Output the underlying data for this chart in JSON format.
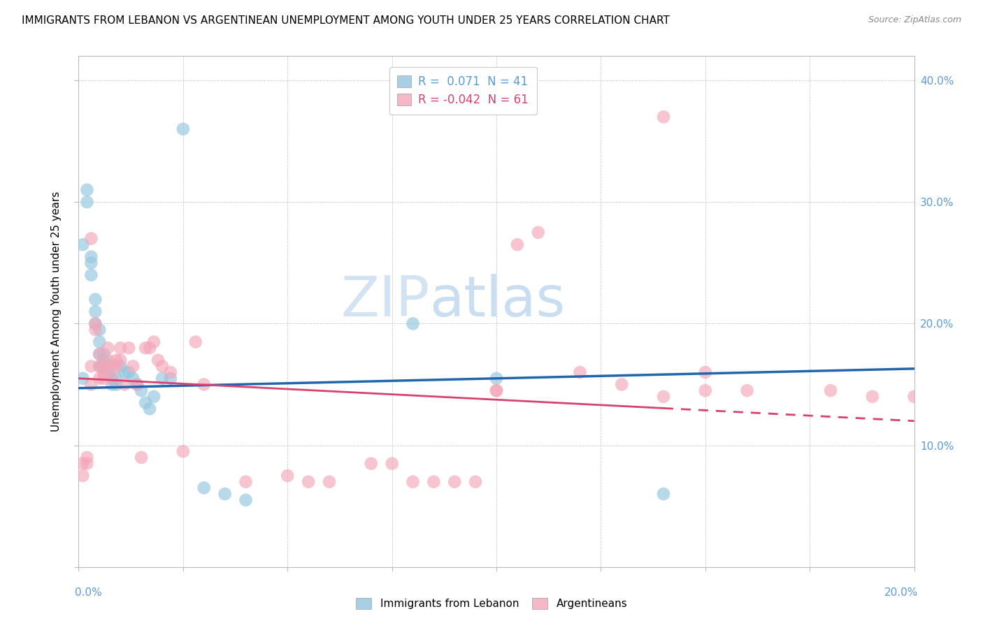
{
  "title": "IMMIGRANTS FROM LEBANON VS ARGENTINEAN UNEMPLOYMENT AMONG YOUTH UNDER 25 YEARS CORRELATION CHART",
  "source": "Source: ZipAtlas.com",
  "ylabel": "Unemployment Among Youth under 25 years",
  "xlim": [
    0.0,
    0.2
  ],
  "ylim": [
    0.0,
    0.42
  ],
  "legend1_label": "Immigrants from Lebanon",
  "legend2_label": "Argentineans",
  "R1": 0.071,
  "N1": 41,
  "R2": -0.042,
  "N2": 61,
  "color_blue": "#92c5de",
  "color_pink": "#f4a6b8",
  "color_blue_line": "#2166ac",
  "color_pink_line": "#d6436e",
  "watermark_zip": "ZIP",
  "watermark_atlas": "atlas",
  "blue_points_x": [
    0.001,
    0.002,
    0.002,
    0.003,
    0.003,
    0.004,
    0.004,
    0.004,
    0.005,
    0.005,
    0.005,
    0.005,
    0.006,
    0.006,
    0.006,
    0.007,
    0.007,
    0.008,
    0.008,
    0.009,
    0.009,
    0.01,
    0.011,
    0.012,
    0.013,
    0.014,
    0.015,
    0.016,
    0.017,
    0.018,
    0.02,
    0.022,
    0.025,
    0.03,
    0.035,
    0.04,
    0.08,
    0.1,
    0.14,
    0.001,
    0.003
  ],
  "blue_points_y": [
    0.155,
    0.31,
    0.3,
    0.25,
    0.24,
    0.22,
    0.21,
    0.2,
    0.195,
    0.185,
    0.175,
    0.165,
    0.175,
    0.17,
    0.165,
    0.165,
    0.16,
    0.155,
    0.15,
    0.155,
    0.15,
    0.165,
    0.16,
    0.16,
    0.155,
    0.15,
    0.145,
    0.135,
    0.13,
    0.14,
    0.155,
    0.155,
    0.36,
    0.065,
    0.06,
    0.055,
    0.2,
    0.155,
    0.06,
    0.265,
    0.255
  ],
  "pink_points_x": [
    0.001,
    0.001,
    0.002,
    0.002,
    0.003,
    0.003,
    0.004,
    0.004,
    0.005,
    0.005,
    0.005,
    0.006,
    0.006,
    0.006,
    0.007,
    0.007,
    0.008,
    0.008,
    0.009,
    0.009,
    0.01,
    0.01,
    0.011,
    0.012,
    0.013,
    0.014,
    0.015,
    0.016,
    0.017,
    0.018,
    0.019,
    0.02,
    0.022,
    0.025,
    0.028,
    0.03,
    0.04,
    0.05,
    0.055,
    0.06,
    0.07,
    0.075,
    0.08,
    0.085,
    0.09,
    0.095,
    0.1,
    0.105,
    0.11,
    0.12,
    0.13,
    0.14,
    0.15,
    0.16,
    0.18,
    0.19,
    0.2,
    0.15,
    0.14,
    0.1,
    0.003
  ],
  "pink_points_y": [
    0.085,
    0.075,
    0.085,
    0.09,
    0.165,
    0.15,
    0.2,
    0.195,
    0.175,
    0.165,
    0.155,
    0.16,
    0.155,
    0.165,
    0.18,
    0.17,
    0.165,
    0.155,
    0.17,
    0.165,
    0.18,
    0.17,
    0.15,
    0.18,
    0.165,
    0.15,
    0.09,
    0.18,
    0.18,
    0.185,
    0.17,
    0.165,
    0.16,
    0.095,
    0.185,
    0.15,
    0.07,
    0.075,
    0.07,
    0.07,
    0.085,
    0.085,
    0.07,
    0.07,
    0.07,
    0.07,
    0.145,
    0.265,
    0.275,
    0.16,
    0.15,
    0.37,
    0.16,
    0.145,
    0.145,
    0.14,
    0.14,
    0.145,
    0.14,
    0.145,
    0.27
  ]
}
